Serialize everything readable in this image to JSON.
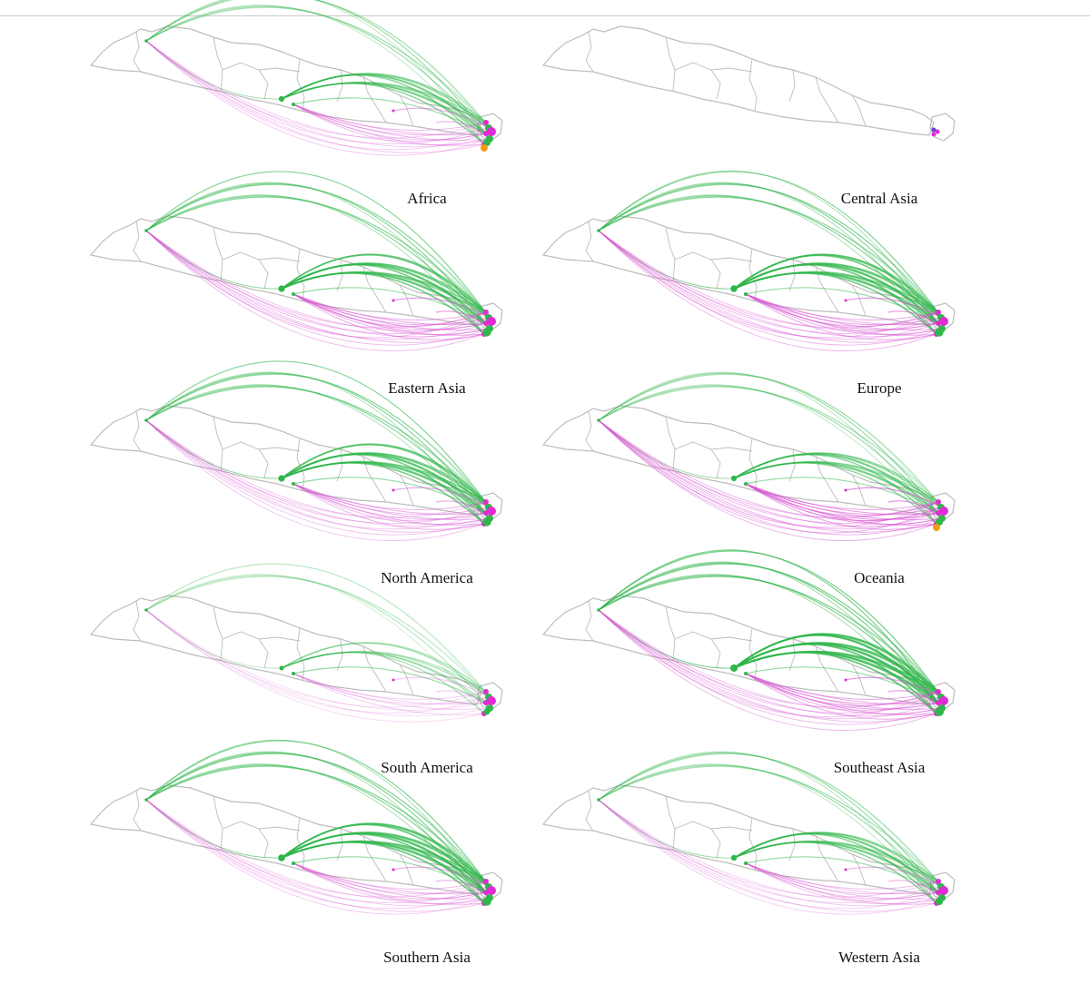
{
  "figure": {
    "panels": [
      {
        "label": "Africa",
        "green": 0.55,
        "pink": 0.5
      },
      {
        "label": "Central Asia",
        "green": 0.0,
        "pink": 0.0
      },
      {
        "label": "Eastern Asia",
        "green": 0.8,
        "pink": 0.75
      },
      {
        "label": "Europe",
        "green": 0.85,
        "pink": 0.8
      },
      {
        "label": "North America",
        "green": 0.8,
        "pink": 0.6
      },
      {
        "label": "Oceania",
        "green": 0.55,
        "pink": 0.9
      },
      {
        "label": "South America",
        "green": 0.25,
        "pink": 0.2
      },
      {
        "label": "Southeast Asia",
        "green": 1.0,
        "pink": 0.75
      },
      {
        "label": "Southern Asia",
        "green": 0.9,
        "pink": 0.5
      },
      {
        "label": "Western Asia",
        "green": 0.6,
        "pink": 0.45
      }
    ],
    "colors": {
      "map": "#bdbdbd",
      "green": "#2fb64a",
      "pink": "#d94fd3",
      "node": "#e22bd6",
      "orange": "#f39c12"
    }
  }
}
